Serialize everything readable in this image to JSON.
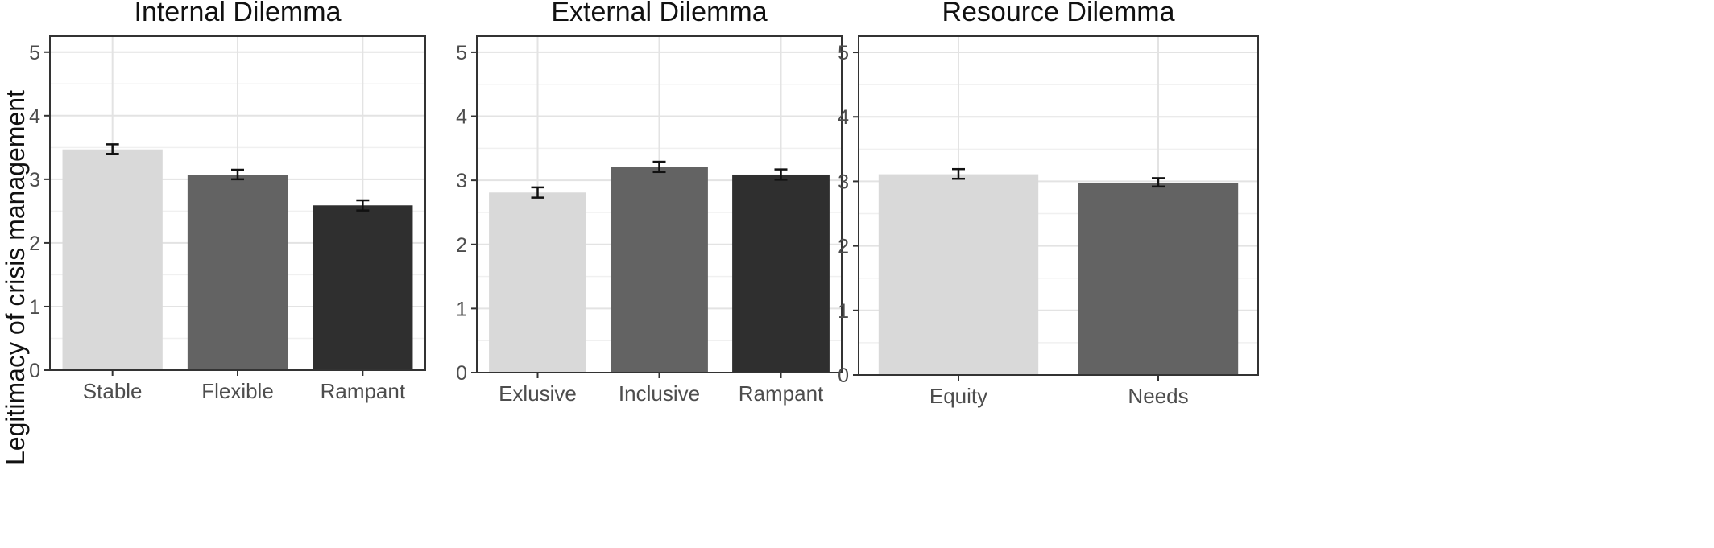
{
  "ylabel": "Legitimacy of crisis management",
  "chart_data": [
    {
      "type": "bar",
      "title": "Internal Dilemma",
      "categories": [
        "Stable",
        "Flexible",
        "Rampant"
      ],
      "values": [
        3.47,
        3.07,
        2.59
      ],
      "error_low": [
        3.4,
        3.0,
        2.51
      ],
      "error_high": [
        3.55,
        3.15,
        2.67
      ],
      "ylim": [
        0,
        5.25
      ],
      "yticks": [
        "0",
        "1",
        "2",
        "3",
        "4",
        "5"
      ],
      "grid": true,
      "colors": [
        "#d9d9d9",
        "#636363",
        "#2f2f2f"
      ]
    },
    {
      "type": "bar",
      "title": "External Dilemma",
      "categories": [
        "Exlusive",
        "Inclusive",
        "Rampant"
      ],
      "values": [
        2.81,
        3.21,
        3.09
      ],
      "error_low": [
        2.73,
        3.13,
        3.01
      ],
      "error_high": [
        2.89,
        3.29,
        3.17
      ],
      "ylim": [
        0,
        5.25
      ],
      "yticks": [
        "0",
        "1",
        "2",
        "3",
        "4",
        "5"
      ],
      "grid": true,
      "colors": [
        "#d9d9d9",
        "#636363",
        "#2f2f2f"
      ]
    },
    {
      "type": "bar",
      "title": "Resource Dilemma",
      "categories": [
        "Equity",
        "Needs"
      ],
      "values": [
        3.11,
        2.98
      ],
      "error_low": [
        3.04,
        2.92
      ],
      "error_high": [
        3.19,
        3.05
      ],
      "ylim": [
        0,
        5.25
      ],
      "yticks": [
        "0",
        "1",
        "2",
        "3",
        "4",
        "5"
      ],
      "grid": true,
      "colors": [
        "#d9d9d9",
        "#636363"
      ]
    }
  ]
}
